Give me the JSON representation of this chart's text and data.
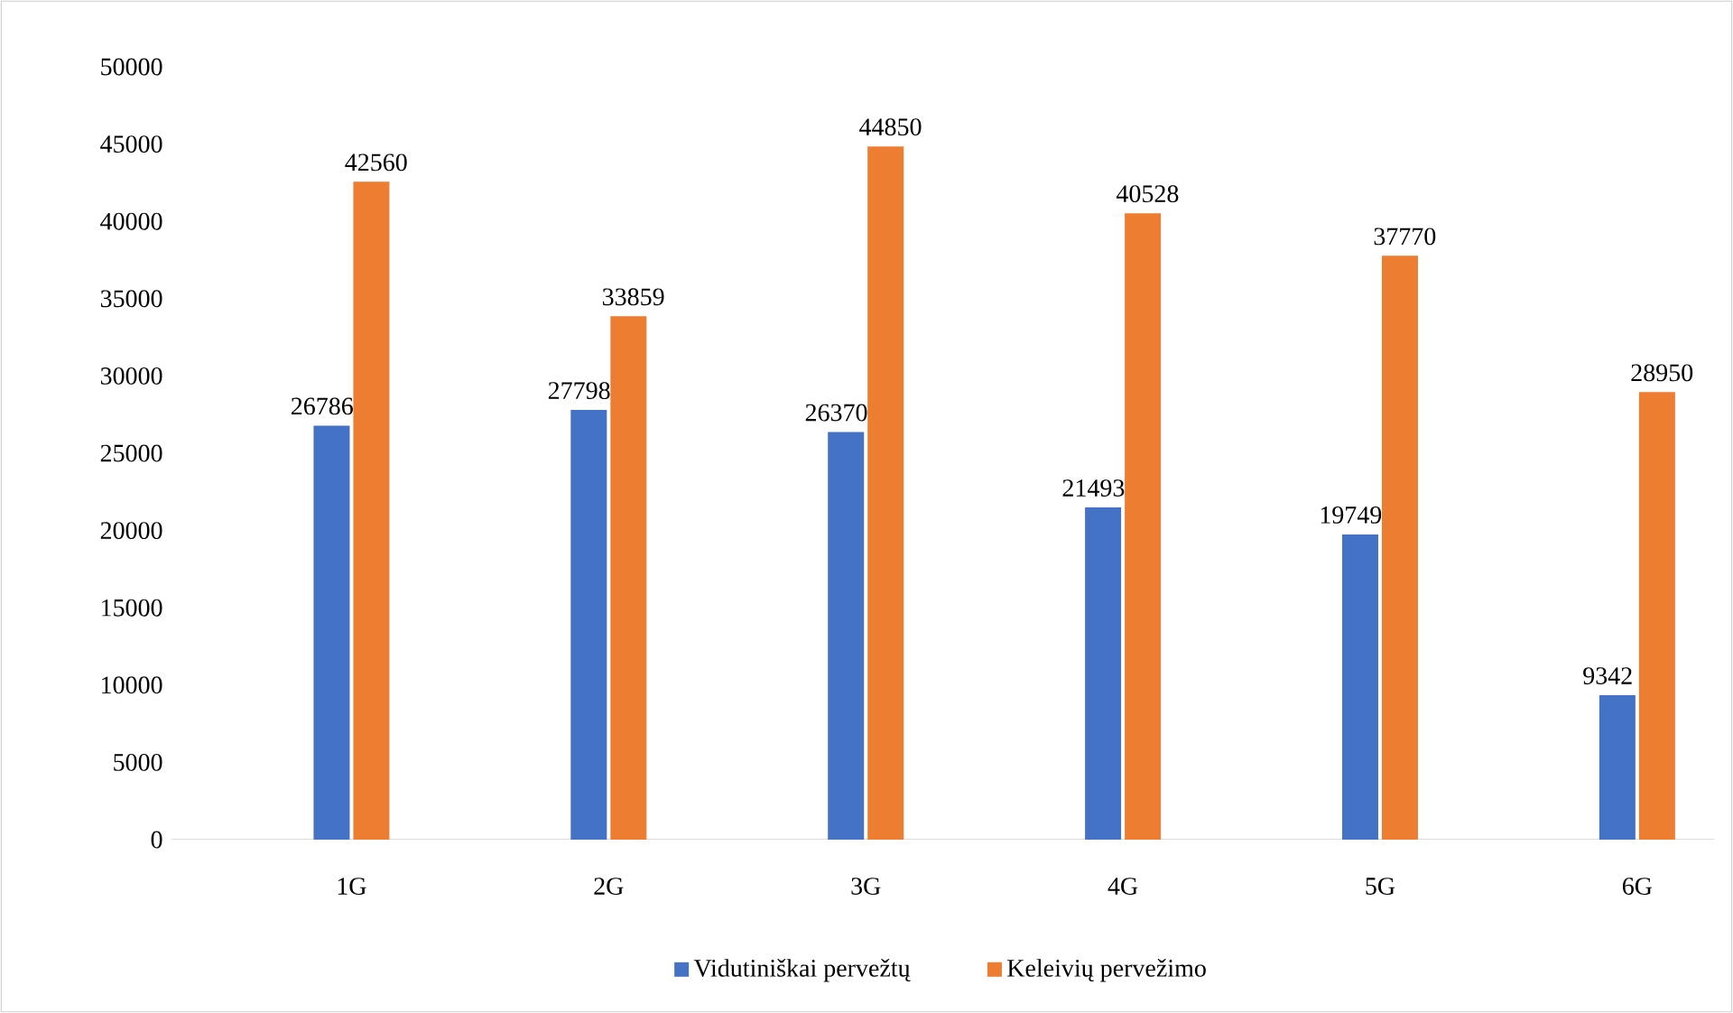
{
  "chart_data": {
    "type": "bar",
    "categories": [
      "1G",
      "2G",
      "3G",
      "4G",
      "5G",
      "6G"
    ],
    "series": [
      {
        "name": "Vidutiniškai pervežtų",
        "color": "#4472c4",
        "values": [
          26786,
          27798,
          26370,
          21493,
          19749,
          9342
        ]
      },
      {
        "name": "Keleivių pervežimo",
        "color": "#ed7d31",
        "values": [
          42560,
          33859,
          44850,
          40528,
          37770,
          28950
        ]
      }
    ],
    "ylim": [
      0,
      50000
    ],
    "yticks": [
      0,
      5000,
      10000,
      15000,
      20000,
      25000,
      30000,
      35000,
      40000,
      45000,
      50000
    ],
    "data_labels": true,
    "legend": "bottom"
  }
}
